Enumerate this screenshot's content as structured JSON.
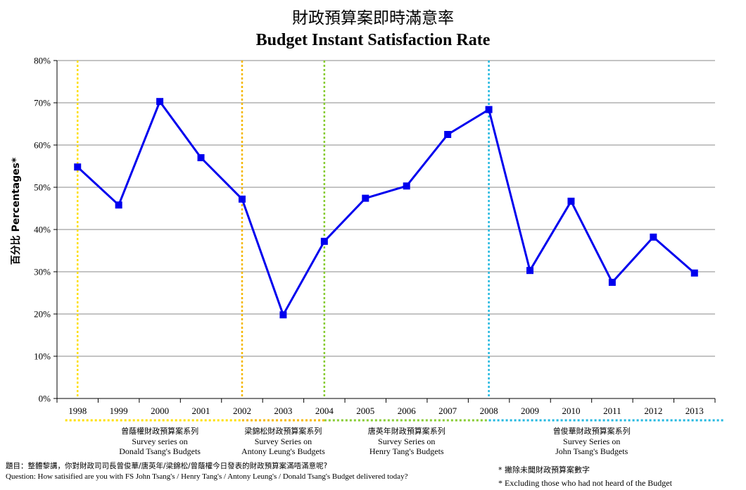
{
  "title_zh": "財政預算案即時滿意率",
  "title_en": "Budget Instant Satisfaction Rate",
  "ylabel_zh": "百分比",
  "ylabel_en": " Percentages*",
  "colors": {
    "line": "#0000ee",
    "grid": "#888888",
    "donald": "#ffe000",
    "antony": "#f5b800",
    "henry": "#88cc33",
    "john": "#22b8e0"
  },
  "chart_data": {
    "type": "line",
    "categories": [
      "1998",
      "1999",
      "2000",
      "2001",
      "2002",
      "2003",
      "2004",
      "2005",
      "2006",
      "2007",
      "2008",
      "2009",
      "2010",
      "2011",
      "2012",
      "2013"
    ],
    "series": [
      {
        "values": [
          54.8,
          45.8,
          70.3,
          57.0,
          47.2,
          19.8,
          37.2,
          47.4,
          50.3,
          62.5,
          68.4,
          30.3,
          46.7,
          27.5,
          38.2,
          29.7
        ]
      }
    ],
    "yticks": [
      "0%",
      "10%",
      "20%",
      "30%",
      "40%",
      "50%",
      "60%",
      "70%",
      "80%"
    ],
    "ylim": [
      0,
      80
    ],
    "grid": true,
    "vertical_markers": [
      {
        "year": "1998",
        "color_key": "donald"
      },
      {
        "year": "2002",
        "color_key": "antony"
      },
      {
        "year": "2004",
        "color_key": "henry"
      },
      {
        "year": "2008",
        "color_key": "john"
      }
    ]
  },
  "series_labels": [
    {
      "zh": "曾蔭權財政預算案系列",
      "en1": "Survey  series on",
      "en2": "Donald Tsang's Budgets"
    },
    {
      "zh": "梁錦松財政預算案系列",
      "en1": "Survey Series  on",
      "en2": "Antony Leung's Budgets"
    },
    {
      "zh": "唐英年財政預算案系列",
      "en1": "Survey Series on",
      "en2": "Henry Tang's Budgets"
    },
    {
      "zh": "曾俊華財政預算案系列",
      "en1": "Survey Series on",
      "en2": "John Tsang's Budgets"
    }
  ],
  "question_zh": "題目：整體黎講，你對財政司司長曾俊華/唐英年/梁錦松/曾蔭權今日發表的財政預算案滿唔滿意呢?",
  "question_en": "Question: How satisified are you with FS John Tsang's / Henry Tang's / Antony Leung's / Donald Tsang's Budget delivered today?",
  "note_zh": "* 撇除未聞財政預算案數字",
  "note_en": "* Excluding  those who had not heard of the Budget"
}
